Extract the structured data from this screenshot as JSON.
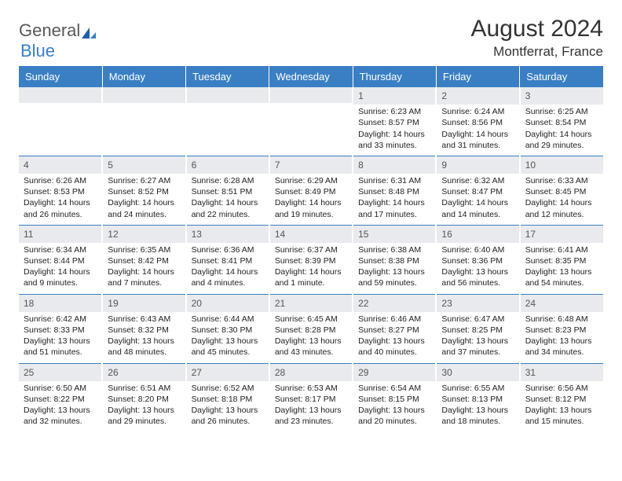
{
  "brand": {
    "text1": "General",
    "text2": "Blue"
  },
  "title": "August 2024",
  "location": "Montferrat, France",
  "colors": {
    "header_bg": "#3a7fc4",
    "header_fg": "#ffffff",
    "band_bg": "#e8eaed",
    "text": "#222222",
    "logo_gray": "#595959",
    "logo_blue": "#3a7fc4"
  },
  "weekdays": [
    "Sunday",
    "Monday",
    "Tuesday",
    "Wednesday",
    "Thursday",
    "Friday",
    "Saturday"
  ],
  "weeks": [
    [
      {
        "n": "",
        "sr": "",
        "ss": "",
        "dl": ""
      },
      {
        "n": "",
        "sr": "",
        "ss": "",
        "dl": ""
      },
      {
        "n": "",
        "sr": "",
        "ss": "",
        "dl": ""
      },
      {
        "n": "",
        "sr": "",
        "ss": "",
        "dl": ""
      },
      {
        "n": "1",
        "sr": "Sunrise: 6:23 AM",
        "ss": "Sunset: 8:57 PM",
        "dl": "Daylight: 14 hours and 33 minutes."
      },
      {
        "n": "2",
        "sr": "Sunrise: 6:24 AM",
        "ss": "Sunset: 8:56 PM",
        "dl": "Daylight: 14 hours and 31 minutes."
      },
      {
        "n": "3",
        "sr": "Sunrise: 6:25 AM",
        "ss": "Sunset: 8:54 PM",
        "dl": "Daylight: 14 hours and 29 minutes."
      }
    ],
    [
      {
        "n": "4",
        "sr": "Sunrise: 6:26 AM",
        "ss": "Sunset: 8:53 PM",
        "dl": "Daylight: 14 hours and 26 minutes."
      },
      {
        "n": "5",
        "sr": "Sunrise: 6:27 AM",
        "ss": "Sunset: 8:52 PM",
        "dl": "Daylight: 14 hours and 24 minutes."
      },
      {
        "n": "6",
        "sr": "Sunrise: 6:28 AM",
        "ss": "Sunset: 8:51 PM",
        "dl": "Daylight: 14 hours and 22 minutes."
      },
      {
        "n": "7",
        "sr": "Sunrise: 6:29 AM",
        "ss": "Sunset: 8:49 PM",
        "dl": "Daylight: 14 hours and 19 minutes."
      },
      {
        "n": "8",
        "sr": "Sunrise: 6:31 AM",
        "ss": "Sunset: 8:48 PM",
        "dl": "Daylight: 14 hours and 17 minutes."
      },
      {
        "n": "9",
        "sr": "Sunrise: 6:32 AM",
        "ss": "Sunset: 8:47 PM",
        "dl": "Daylight: 14 hours and 14 minutes."
      },
      {
        "n": "10",
        "sr": "Sunrise: 6:33 AM",
        "ss": "Sunset: 8:45 PM",
        "dl": "Daylight: 14 hours and 12 minutes."
      }
    ],
    [
      {
        "n": "11",
        "sr": "Sunrise: 6:34 AM",
        "ss": "Sunset: 8:44 PM",
        "dl": "Daylight: 14 hours and 9 minutes."
      },
      {
        "n": "12",
        "sr": "Sunrise: 6:35 AM",
        "ss": "Sunset: 8:42 PM",
        "dl": "Daylight: 14 hours and 7 minutes."
      },
      {
        "n": "13",
        "sr": "Sunrise: 6:36 AM",
        "ss": "Sunset: 8:41 PM",
        "dl": "Daylight: 14 hours and 4 minutes."
      },
      {
        "n": "14",
        "sr": "Sunrise: 6:37 AM",
        "ss": "Sunset: 8:39 PM",
        "dl": "Daylight: 14 hours and 1 minute."
      },
      {
        "n": "15",
        "sr": "Sunrise: 6:38 AM",
        "ss": "Sunset: 8:38 PM",
        "dl": "Daylight: 13 hours and 59 minutes."
      },
      {
        "n": "16",
        "sr": "Sunrise: 6:40 AM",
        "ss": "Sunset: 8:36 PM",
        "dl": "Daylight: 13 hours and 56 minutes."
      },
      {
        "n": "17",
        "sr": "Sunrise: 6:41 AM",
        "ss": "Sunset: 8:35 PM",
        "dl": "Daylight: 13 hours and 54 minutes."
      }
    ],
    [
      {
        "n": "18",
        "sr": "Sunrise: 6:42 AM",
        "ss": "Sunset: 8:33 PM",
        "dl": "Daylight: 13 hours and 51 minutes."
      },
      {
        "n": "19",
        "sr": "Sunrise: 6:43 AM",
        "ss": "Sunset: 8:32 PM",
        "dl": "Daylight: 13 hours and 48 minutes."
      },
      {
        "n": "20",
        "sr": "Sunrise: 6:44 AM",
        "ss": "Sunset: 8:30 PM",
        "dl": "Daylight: 13 hours and 45 minutes."
      },
      {
        "n": "21",
        "sr": "Sunrise: 6:45 AM",
        "ss": "Sunset: 8:28 PM",
        "dl": "Daylight: 13 hours and 43 minutes."
      },
      {
        "n": "22",
        "sr": "Sunrise: 6:46 AM",
        "ss": "Sunset: 8:27 PM",
        "dl": "Daylight: 13 hours and 40 minutes."
      },
      {
        "n": "23",
        "sr": "Sunrise: 6:47 AM",
        "ss": "Sunset: 8:25 PM",
        "dl": "Daylight: 13 hours and 37 minutes."
      },
      {
        "n": "24",
        "sr": "Sunrise: 6:48 AM",
        "ss": "Sunset: 8:23 PM",
        "dl": "Daylight: 13 hours and 34 minutes."
      }
    ],
    [
      {
        "n": "25",
        "sr": "Sunrise: 6:50 AM",
        "ss": "Sunset: 8:22 PM",
        "dl": "Daylight: 13 hours and 32 minutes."
      },
      {
        "n": "26",
        "sr": "Sunrise: 6:51 AM",
        "ss": "Sunset: 8:20 PM",
        "dl": "Daylight: 13 hours and 29 minutes."
      },
      {
        "n": "27",
        "sr": "Sunrise: 6:52 AM",
        "ss": "Sunset: 8:18 PM",
        "dl": "Daylight: 13 hours and 26 minutes."
      },
      {
        "n": "28",
        "sr": "Sunrise: 6:53 AM",
        "ss": "Sunset: 8:17 PM",
        "dl": "Daylight: 13 hours and 23 minutes."
      },
      {
        "n": "29",
        "sr": "Sunrise: 6:54 AM",
        "ss": "Sunset: 8:15 PM",
        "dl": "Daylight: 13 hours and 20 minutes."
      },
      {
        "n": "30",
        "sr": "Sunrise: 6:55 AM",
        "ss": "Sunset: 8:13 PM",
        "dl": "Daylight: 13 hours and 18 minutes."
      },
      {
        "n": "31",
        "sr": "Sunrise: 6:56 AM",
        "ss": "Sunset: 8:12 PM",
        "dl": "Daylight: 13 hours and 15 minutes."
      }
    ]
  ]
}
